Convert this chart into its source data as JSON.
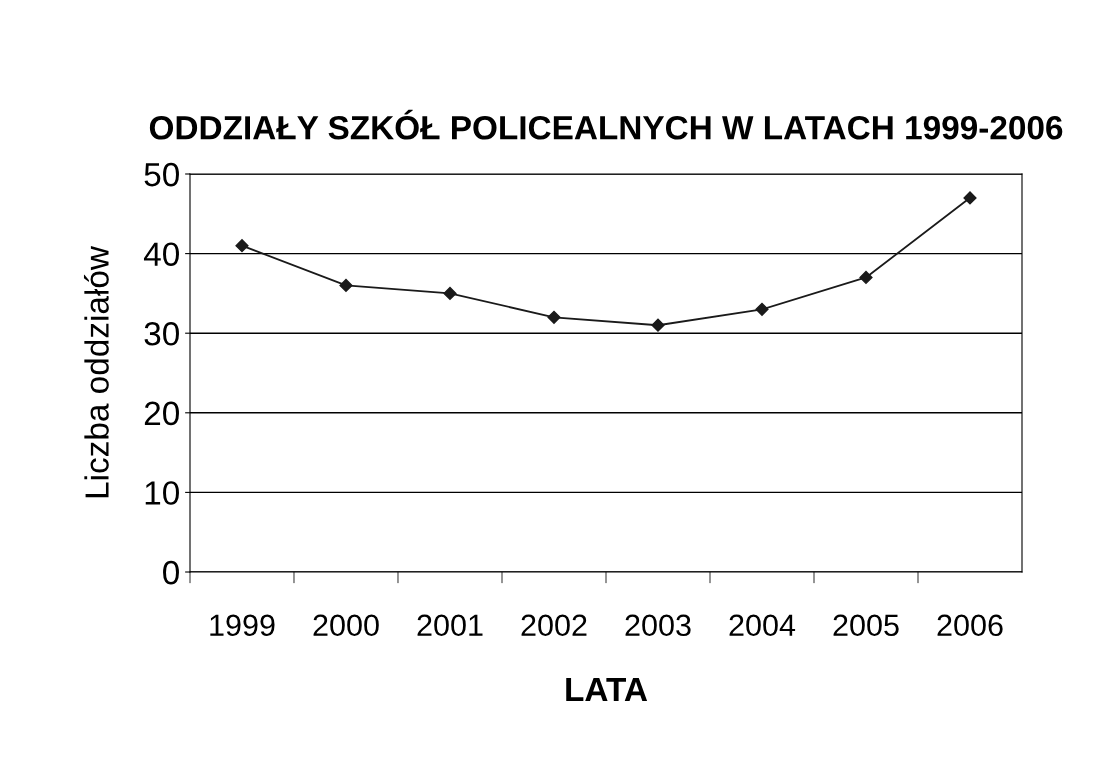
{
  "chart_data": {
    "type": "line",
    "title": "ODDZIAŁY SZKÓŁ POLICEALNYCH W LATACH 1999-2006",
    "xlabel": "LATA",
    "ylabel": "Liczba oddziałów",
    "categories": [
      "1999",
      "2000",
      "2001",
      "2002",
      "2003",
      "2004",
      "2005",
      "2006"
    ],
    "series": [
      {
        "color": "#1a1a1a",
        "values": [
          41,
          36,
          35,
          32,
          31,
          33,
          37,
          47
        ]
      }
    ],
    "ylim": [
      0,
      50
    ],
    "yticks": [
      0,
      10,
      20,
      30,
      40,
      50
    ],
    "grid": "y",
    "marker": "diamond",
    "line_style": "solid"
  }
}
